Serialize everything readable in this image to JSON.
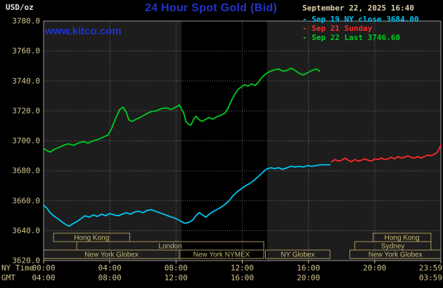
{
  "header": {
    "units": "USD/oz",
    "title": "24 Hour Spot Gold (Bid)",
    "datetime": "September 22, 2025 16:40",
    "watermark": "www.kitco.com"
  },
  "legend": {
    "items": [
      {
        "label": "Sep 19 NY close 3684.00",
        "color": "#00c8f5"
      },
      {
        "label": "Sep 21 Sunday",
        "color": "#ff2a2a"
      },
      {
        "label": "Sep 22 Last 3746.60",
        "color": "#00cc22"
      }
    ]
  },
  "axis": {
    "row1_label": "NY Time",
    "row2_label": "GMT",
    "y_labels": [
      "3780.0",
      "3760.0",
      "3740.0",
      "3720.0",
      "3700.0",
      "3680.0",
      "3660.0",
      "3640.0",
      "3620.0"
    ],
    "x_ticks_ny": [
      {
        "hour": 0,
        "label": "00:00"
      },
      {
        "hour": 4,
        "label": "04:00"
      },
      {
        "hour": 8,
        "label": "08:00"
      },
      {
        "hour": 12,
        "label": "12:00"
      },
      {
        "hour": 16,
        "label": "16:00"
      },
      {
        "hour": 20,
        "label": "20:00"
      },
      {
        "hour": 24,
        "label": "23:59"
      }
    ],
    "x_ticks_gmt": [
      {
        "hour": 0,
        "label": "04:00"
      },
      {
        "hour": 4,
        "label": "08:00"
      },
      {
        "hour": 8,
        "label": "12:00"
      },
      {
        "hour": 12,
        "label": "16:00"
      },
      {
        "hour": 16,
        "label": "20:00"
      },
      {
        "hour": 24,
        "label": "03:59"
      }
    ]
  },
  "colors": {
    "title_blue": "#2233cc",
    "tan": "#d2c38e",
    "date_text": "#ddd2ac",
    "units_text": "#e8e8e8",
    "session_border": "#a89858",
    "session_text": "#c8b878",
    "grid": "#6e6e6e",
    "plot_bg": "#1d1d1d",
    "band": "#000000",
    "frame": "#999999"
  },
  "chart_data": {
    "type": "line",
    "title": "24 Hour Spot Gold (Bid)",
    "xlabel": "NY Time",
    "ylabel": "USD/oz",
    "xlim": [
      0,
      24
    ],
    "ylim": [
      3620,
      3780
    ],
    "y_ticks": [
      3620,
      3640,
      3660,
      3680,
      3700,
      3720,
      3740,
      3760,
      3780
    ],
    "grid": true,
    "legend_position": "top-right",
    "highlight_band": {
      "start_hour": 8.33,
      "end_hour": 13.5,
      "note": "NYMEX open session shading"
    },
    "series": [
      {
        "id": "sep19",
        "name": "Sep 19 NY close 3684.00",
        "color": "#00c8f5",
        "points": [
          [
            0,
            3657
          ],
          [
            0.2,
            3655
          ],
          [
            0.4,
            3652
          ],
          [
            0.6,
            3650
          ],
          [
            0.85,
            3648
          ],
          [
            1.1,
            3646
          ],
          [
            1.35,
            3644
          ],
          [
            1.55,
            3643
          ],
          [
            1.75,
            3644.5
          ],
          [
            2,
            3646
          ],
          [
            2.25,
            3648
          ],
          [
            2.5,
            3650
          ],
          [
            2.75,
            3649
          ],
          [
            3,
            3650.5
          ],
          [
            3.25,
            3649.5
          ],
          [
            3.5,
            3651
          ],
          [
            3.75,
            3650
          ],
          [
            4,
            3651.5
          ],
          [
            4.25,
            3650.5
          ],
          [
            4.5,
            3650
          ],
          [
            4.75,
            3651
          ],
          [
            5,
            3652
          ],
          [
            5.25,
            3651
          ],
          [
            5.5,
            3652.5
          ],
          [
            5.75,
            3653
          ],
          [
            6,
            3652
          ],
          [
            6.25,
            3653.5
          ],
          [
            6.5,
            3654
          ],
          [
            6.75,
            3653
          ],
          [
            7,
            3652
          ],
          [
            7.25,
            3651
          ],
          [
            7.5,
            3650
          ],
          [
            7.75,
            3649
          ],
          [
            8,
            3648
          ],
          [
            8.25,
            3646.5
          ],
          [
            8.5,
            3645
          ],
          [
            8.75,
            3645.5
          ],
          [
            9,
            3647
          ],
          [
            9.2,
            3650
          ],
          [
            9.4,
            3652
          ],
          [
            9.6,
            3650.5
          ],
          [
            9.8,
            3649
          ],
          [
            10,
            3651
          ],
          [
            10.2,
            3652.5
          ],
          [
            10.45,
            3654
          ],
          [
            10.7,
            3655.5
          ],
          [
            10.95,
            3657.5
          ],
          [
            11.2,
            3660
          ],
          [
            11.45,
            3663.5
          ],
          [
            11.7,
            3666
          ],
          [
            11.95,
            3668
          ],
          [
            12.2,
            3670
          ],
          [
            12.45,
            3671.5
          ],
          [
            12.7,
            3673.5
          ],
          [
            12.95,
            3676
          ],
          [
            13.2,
            3678.5
          ],
          [
            13.45,
            3681
          ],
          [
            13.7,
            3682
          ],
          [
            13.95,
            3681.5
          ],
          [
            14.2,
            3682
          ],
          [
            14.45,
            3681
          ],
          [
            14.7,
            3682
          ],
          [
            14.95,
            3683
          ],
          [
            15.2,
            3682.5
          ],
          [
            15.45,
            3683
          ],
          [
            15.7,
            3682.5
          ],
          [
            15.95,
            3683.5
          ],
          [
            16.2,
            3683
          ],
          [
            16.45,
            3683.5
          ],
          [
            16.7,
            3684
          ],
          [
            17,
            3684
          ],
          [
            17.3,
            3684
          ]
        ]
      },
      {
        "id": "sep21",
        "name": "Sep 21 Sunday",
        "color": "#ff2a2a",
        "points": [
          [
            17.4,
            3686
          ],
          [
            17.6,
            3687.5
          ],
          [
            17.8,
            3686.5
          ],
          [
            18,
            3687
          ],
          [
            18.2,
            3688.5
          ],
          [
            18.4,
            3687
          ],
          [
            18.6,
            3686
          ],
          [
            18.8,
            3687.5
          ],
          [
            19,
            3686.5
          ],
          [
            19.2,
            3687
          ],
          [
            19.4,
            3688
          ],
          [
            19.6,
            3687
          ],
          [
            19.8,
            3686.5
          ],
          [
            20,
            3688
          ],
          [
            20.2,
            3687.5
          ],
          [
            20.4,
            3688.5
          ],
          [
            20.6,
            3687.5
          ],
          [
            20.8,
            3688
          ],
          [
            21,
            3689
          ],
          [
            21.2,
            3688
          ],
          [
            21.4,
            3689.5
          ],
          [
            21.6,
            3688.5
          ],
          [
            21.8,
            3689
          ],
          [
            22,
            3690
          ],
          [
            22.2,
            3689
          ],
          [
            22.4,
            3688.5
          ],
          [
            22.6,
            3689.5
          ],
          [
            22.8,
            3688.5
          ],
          [
            23,
            3689.5
          ],
          [
            23.2,
            3690.5
          ],
          [
            23.4,
            3690
          ],
          [
            23.6,
            3691
          ],
          [
            23.8,
            3692.5
          ],
          [
            23.95,
            3696
          ],
          [
            24,
            3697
          ]
        ]
      },
      {
        "id": "sep22",
        "name": "Sep 22 Last 3746.60",
        "color": "#00cc22",
        "points": [
          [
            0,
            3695
          ],
          [
            0.2,
            3693.5
          ],
          [
            0.4,
            3692.5
          ],
          [
            0.6,
            3694
          ],
          [
            0.9,
            3695.5
          ],
          [
            1.2,
            3697
          ],
          [
            1.5,
            3698
          ],
          [
            1.8,
            3697
          ],
          [
            2.1,
            3698.5
          ],
          [
            2.4,
            3699.5
          ],
          [
            2.7,
            3698.5
          ],
          [
            3,
            3700
          ],
          [
            3.3,
            3701
          ],
          [
            3.6,
            3702.5
          ],
          [
            3.9,
            3704
          ],
          [
            4.1,
            3708
          ],
          [
            4.35,
            3715
          ],
          [
            4.6,
            3721
          ],
          [
            4.8,
            3722.5
          ],
          [
            5,
            3719
          ],
          [
            5.15,
            3714
          ],
          [
            5.35,
            3713
          ],
          [
            5.6,
            3714.5
          ],
          [
            5.9,
            3716
          ],
          [
            6.2,
            3718
          ],
          [
            6.5,
            3719.5
          ],
          [
            6.8,
            3720
          ],
          [
            7.1,
            3721.5
          ],
          [
            7.4,
            3722
          ],
          [
            7.7,
            3721
          ],
          [
            8,
            3722.5
          ],
          [
            8.2,
            3724
          ],
          [
            8.45,
            3719
          ],
          [
            8.6,
            3713
          ],
          [
            8.75,
            3711
          ],
          [
            8.9,
            3710.5
          ],
          [
            9.05,
            3714
          ],
          [
            9.2,
            3716.5
          ],
          [
            9.4,
            3714
          ],
          [
            9.6,
            3713
          ],
          [
            9.8,
            3714.5
          ],
          [
            10,
            3715.5
          ],
          [
            10.2,
            3714.5
          ],
          [
            10.45,
            3716
          ],
          [
            10.7,
            3717
          ],
          [
            10.95,
            3718.5
          ],
          [
            11.15,
            3722
          ],
          [
            11.35,
            3727
          ],
          [
            11.55,
            3731
          ],
          [
            11.75,
            3734.5
          ],
          [
            11.95,
            3736
          ],
          [
            12.15,
            3737.5
          ],
          [
            12.35,
            3736.5
          ],
          [
            12.55,
            3738
          ],
          [
            12.8,
            3737
          ],
          [
            13,
            3739.5
          ],
          [
            13.2,
            3742.5
          ],
          [
            13.45,
            3745
          ],
          [
            13.7,
            3746.5
          ],
          [
            13.95,
            3747.5
          ],
          [
            14.2,
            3748
          ],
          [
            14.45,
            3746.5
          ],
          [
            14.7,
            3747
          ],
          [
            14.95,
            3748.5
          ],
          [
            15.2,
            3747
          ],
          [
            15.45,
            3745
          ],
          [
            15.7,
            3744
          ],
          [
            15.95,
            3745.5
          ],
          [
            16.2,
            3747
          ],
          [
            16.45,
            3748
          ],
          [
            16.67,
            3746.6
          ]
        ]
      }
    ],
    "sessions": [
      {
        "row": 0,
        "start": 0.6,
        "end": 5.2,
        "label": "Hong Kong"
      },
      {
        "row": 0,
        "start": 19.9,
        "end": 23.4,
        "label": "Hong Kong"
      },
      {
        "row": 1,
        "start": 2.0,
        "end": 13.3,
        "label": "London"
      },
      {
        "row": 1,
        "start": 18.8,
        "end": 23.4,
        "label": "Sydney"
      },
      {
        "row": 2,
        "start": 0.0,
        "end": 8.2,
        "label": "New York Globex"
      },
      {
        "row": 2,
        "start": 8.2,
        "end": 13.3,
        "label": "New York NYMEX"
      },
      {
        "row": 2,
        "start": 13.4,
        "end": 17.3,
        "label": "NY Globex"
      },
      {
        "row": 2,
        "start": 18.5,
        "end": 24.0,
        "label": "New York Globex"
      }
    ]
  }
}
